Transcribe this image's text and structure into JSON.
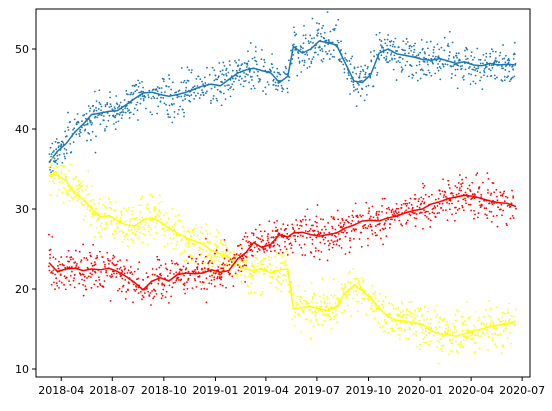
{
  "chart_data": {
    "type": "scatter",
    "title": "",
    "xlabel": "",
    "ylabel": "",
    "x_type": "date",
    "xlim": [
      "2018-02-15",
      "2020-07-15"
    ],
    "ylim": [
      9,
      55
    ],
    "grid": false,
    "legend": "none",
    "x_ticks": [
      "2018-04",
      "2018-07",
      "2018-10",
      "2019-01",
      "2019-04",
      "2019-07",
      "2019-10",
      "2020-01",
      "2020-04",
      "2020-07"
    ],
    "x_tick_dates": [
      "2018-04-01",
      "2018-07-01",
      "2018-10-01",
      "2019-01-01",
      "2019-04-01",
      "2019-07-01",
      "2019-10-01",
      "2020-01-01",
      "2020-04-01",
      "2020-07-01"
    ],
    "y_ticks": [
      10,
      20,
      30,
      40,
      50
    ],
    "x_tick_texts": [
      "2018-04",
      "2018-07",
      "2018-10",
      "2019-01",
      "2019-04",
      "2019-07",
      "2019-10",
      "2020-01",
      "2020-04",
      "2020-07"
    ],
    "y_tick_texts": [
      "10",
      "20",
      "30",
      "40",
      "50"
    ],
    "series": [
      {
        "color": "#1f77b4",
        "scatter_spread": 1.6,
        "trend": [
          [
            "2018-03-10",
            35.8
          ],
          [
            "2018-03-25",
            37.2
          ],
          [
            "2018-04-10",
            38.2
          ],
          [
            "2018-04-25",
            39.6
          ],
          [
            "2018-05-10",
            40.6
          ],
          [
            "2018-05-25",
            41.8
          ],
          [
            "2018-06-10",
            42.0
          ],
          [
            "2018-06-25",
            42.2
          ],
          [
            "2018-07-10",
            42.3
          ],
          [
            "2018-07-25",
            43.0
          ],
          [
            "2018-08-10",
            43.8
          ],
          [
            "2018-08-25",
            44.5
          ],
          [
            "2018-09-10",
            44.6
          ],
          [
            "2018-09-25",
            44.3
          ],
          [
            "2018-10-10",
            44.1
          ],
          [
            "2018-10-25",
            44.3
          ],
          [
            "2018-11-10",
            44.6
          ],
          [
            "2018-11-25",
            45.0
          ],
          [
            "2018-12-10",
            45.4
          ],
          [
            "2018-12-25",
            45.6
          ],
          [
            "2019-01-10",
            45.4
          ],
          [
            "2019-01-25",
            46.2
          ],
          [
            "2019-02-10",
            47.0
          ],
          [
            "2019-02-25",
            47.4
          ],
          [
            "2019-03-10",
            47.6
          ],
          [
            "2019-03-25",
            47.3
          ],
          [
            "2019-04-10",
            47.0
          ],
          [
            "2019-04-25",
            45.8
          ],
          [
            "2019-05-10",
            46.6
          ],
          [
            "2019-05-20",
            50.3
          ],
          [
            "2019-06-05",
            49.5
          ],
          [
            "2019-06-20",
            50.0
          ],
          [
            "2019-07-05",
            51.0
          ],
          [
            "2019-07-20",
            50.8
          ],
          [
            "2019-08-05",
            50.5
          ],
          [
            "2019-08-20",
            48.3
          ],
          [
            "2019-09-05",
            46.0
          ],
          [
            "2019-09-20",
            45.8
          ],
          [
            "2019-10-05",
            46.8
          ],
          [
            "2019-10-20",
            49.5
          ],
          [
            "2019-11-05",
            50.0
          ],
          [
            "2019-11-20",
            49.4
          ],
          [
            "2019-12-05",
            49.2
          ],
          [
            "2019-12-20",
            49.0
          ],
          [
            "2020-01-05",
            48.7
          ],
          [
            "2020-01-20",
            48.6
          ],
          [
            "2020-02-05",
            48.8
          ],
          [
            "2020-02-20",
            48.5
          ],
          [
            "2020-03-05",
            48.2
          ],
          [
            "2020-03-20",
            48.4
          ],
          [
            "2020-04-05",
            48.0
          ],
          [
            "2020-04-20",
            47.9
          ],
          [
            "2020-05-05",
            48.2
          ],
          [
            "2020-05-20",
            48.0
          ],
          [
            "2020-06-05",
            48.1
          ],
          [
            "2020-06-20",
            48.0
          ]
        ]
      },
      {
        "color": "#ffff00",
        "scatter_spread": 1.8,
        "trend": [
          [
            "2018-03-10",
            34.4
          ],
          [
            "2018-03-25",
            34.2
          ],
          [
            "2018-04-10",
            33.5
          ],
          [
            "2018-04-25",
            32.0
          ],
          [
            "2018-05-10",
            31.2
          ],
          [
            "2018-05-25",
            30.1
          ],
          [
            "2018-06-10",
            29.0
          ],
          [
            "2018-06-25",
            29.2
          ],
          [
            "2018-07-10",
            28.6
          ],
          [
            "2018-07-25",
            28.0
          ],
          [
            "2018-08-10",
            27.9
          ],
          [
            "2018-08-25",
            28.6
          ],
          [
            "2018-09-10",
            28.9
          ],
          [
            "2018-09-25",
            28.4
          ],
          [
            "2018-10-10",
            27.6
          ],
          [
            "2018-10-25",
            27.0
          ],
          [
            "2018-11-10",
            26.4
          ],
          [
            "2018-11-25",
            26.0
          ],
          [
            "2018-12-10",
            25.6
          ],
          [
            "2018-12-25",
            24.8
          ],
          [
            "2019-01-10",
            24.4
          ],
          [
            "2019-01-25",
            24.0
          ],
          [
            "2019-02-10",
            23.0
          ],
          [
            "2019-02-25",
            22.5
          ],
          [
            "2019-03-10",
            22.3
          ],
          [
            "2019-03-25",
            22.5
          ],
          [
            "2019-04-10",
            22.0
          ],
          [
            "2019-04-25",
            22.4
          ],
          [
            "2019-05-10",
            22.5
          ],
          [
            "2019-05-20",
            17.5
          ],
          [
            "2019-06-05",
            17.7
          ],
          [
            "2019-06-20",
            17.8
          ],
          [
            "2019-07-05",
            17.5
          ],
          [
            "2019-07-20",
            17.3
          ],
          [
            "2019-08-05",
            17.8
          ],
          [
            "2019-08-20",
            19.5
          ],
          [
            "2019-09-05",
            20.5
          ],
          [
            "2019-09-20",
            19.8
          ],
          [
            "2019-10-05",
            18.8
          ],
          [
            "2019-10-20",
            17.6
          ],
          [
            "2019-11-05",
            16.5
          ],
          [
            "2019-11-20",
            16.1
          ],
          [
            "2019-12-05",
            16.0
          ],
          [
            "2019-12-20",
            15.8
          ],
          [
            "2020-01-05",
            15.6
          ],
          [
            "2020-01-20",
            14.8
          ],
          [
            "2020-02-05",
            14.4
          ],
          [
            "2020-02-20",
            14.3
          ],
          [
            "2020-03-05",
            14.1
          ],
          [
            "2020-03-20",
            14.4
          ],
          [
            "2020-04-05",
            14.8
          ],
          [
            "2020-04-20",
            15.0
          ],
          [
            "2020-05-05",
            15.3
          ],
          [
            "2020-05-20",
            15.5
          ],
          [
            "2020-06-05",
            15.6
          ],
          [
            "2020-06-20",
            16.0
          ]
        ]
      },
      {
        "color": "#ff0000",
        "scatter_spread": 1.7,
        "trend": [
          [
            "2018-03-10",
            23.3
          ],
          [
            "2018-03-25",
            22.2
          ],
          [
            "2018-04-10",
            22.5
          ],
          [
            "2018-04-25",
            22.6
          ],
          [
            "2018-05-10",
            22.3
          ],
          [
            "2018-05-25",
            22.5
          ],
          [
            "2018-06-10",
            22.4
          ],
          [
            "2018-06-25",
            22.6
          ],
          [
            "2018-07-10",
            22.2
          ],
          [
            "2018-07-25",
            21.6
          ],
          [
            "2018-08-10",
            20.8
          ],
          [
            "2018-08-25",
            19.9
          ],
          [
            "2018-09-10",
            21.0
          ],
          [
            "2018-09-25",
            21.4
          ],
          [
            "2018-10-10",
            21.0
          ],
          [
            "2018-10-25",
            21.8
          ],
          [
            "2018-11-10",
            22.0
          ],
          [
            "2018-11-25",
            21.9
          ],
          [
            "2018-12-10",
            22.0
          ],
          [
            "2018-12-25",
            22.4
          ],
          [
            "2019-01-10",
            22.1
          ],
          [
            "2019-01-25",
            22.3
          ],
          [
            "2019-02-10",
            23.8
          ],
          [
            "2019-02-25",
            24.6
          ],
          [
            "2019-03-10",
            25.8
          ],
          [
            "2019-03-25",
            25.2
          ],
          [
            "2019-04-10",
            25.6
          ],
          [
            "2019-04-25",
            26.8
          ],
          [
            "2019-05-10",
            26.5
          ],
          [
            "2019-05-20",
            27.0
          ],
          [
            "2019-06-05",
            27.1
          ],
          [
            "2019-06-20",
            26.8
          ],
          [
            "2019-07-05",
            26.6
          ],
          [
            "2019-07-20",
            26.8
          ],
          [
            "2019-08-05",
            27.0
          ],
          [
            "2019-08-20",
            27.6
          ],
          [
            "2019-09-05",
            28.0
          ],
          [
            "2019-09-20",
            28.5
          ],
          [
            "2019-10-05",
            28.6
          ],
          [
            "2019-10-20",
            28.5
          ],
          [
            "2019-11-05",
            28.9
          ],
          [
            "2019-11-20",
            29.1
          ],
          [
            "2019-12-05",
            29.5
          ],
          [
            "2019-12-20",
            29.8
          ],
          [
            "2020-01-05",
            30.0
          ],
          [
            "2020-01-20",
            30.6
          ],
          [
            "2020-02-05",
            30.9
          ],
          [
            "2020-02-20",
            31.3
          ],
          [
            "2020-03-05",
            31.5
          ],
          [
            "2020-03-20",
            31.7
          ],
          [
            "2020-04-05",
            31.6
          ],
          [
            "2020-04-20",
            31.3
          ],
          [
            "2020-05-05",
            31.0
          ],
          [
            "2020-05-20",
            30.8
          ],
          [
            "2020-06-05",
            30.7
          ],
          [
            "2020-06-20",
            30.3
          ]
        ]
      }
    ]
  }
}
